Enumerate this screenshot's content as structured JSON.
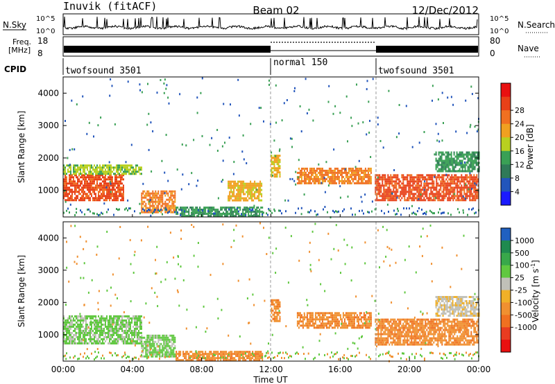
{
  "header": {
    "station": "Inuvik (fitACF)",
    "beam": "Beam 02",
    "date": "12/Dec/2012"
  },
  "strip_labels": {
    "nsky": "N.Sky",
    "freq_line1": "Freq.",
    "freq_line2": "[MHz]",
    "cpid": "CPID",
    "nsearch": "N.Search",
    "nave": "Nave",
    "nsky_ticks": [
      "10^5",
      "10^0"
    ],
    "freq_ticks": [
      "18",
      "8"
    ],
    "nave_ticks": [
      "80",
      "0"
    ],
    "nsearch_ticks": [
      "10^5",
      "10^0"
    ]
  },
  "cpid_segments": [
    {
      "label": "twofsound 3501",
      "start": "00:00",
      "end": "12:00"
    },
    {
      "label": "normal 150",
      "start": "12:00",
      "end": "18:00"
    },
    {
      "label": "twofsound 3501",
      "start": "18:00",
      "end": "24:00"
    }
  ],
  "x_axis": {
    "label": "Time UT",
    "ticks": [
      "00:00",
      "04:00",
      "08:00",
      "12:00",
      "16:00",
      "20:00",
      "00:00"
    ]
  },
  "chart_data": [
    {
      "type": "heatmap",
      "title": "",
      "xlabel": "Time UT",
      "ylabel": "Slant Range [km]",
      "x_range_hours": [
        0,
        24
      ],
      "ylim": [
        180,
        4500
      ],
      "yticks": [
        "1000",
        "2000",
        "3000",
        "4000"
      ],
      "colorbar": {
        "label": "Power [dB]",
        "ticks": [
          "4",
          "8",
          "12",
          "16",
          "20",
          "24",
          "28"
        ],
        "colors": [
          "#1a1aff",
          "#2255bb",
          "#2f7a58",
          "#3aa055",
          "#b8d020",
          "#f0a020",
          "#f07020",
          "#e84018",
          "#e81010"
        ]
      },
      "regions": [
        {
          "t0": 0.0,
          "t1": 3.5,
          "r0": 700,
          "r1": 1500,
          "level": 28
        },
        {
          "t0": 0.0,
          "t1": 4.5,
          "r0": 1500,
          "r1": 1800,
          "level": 16
        },
        {
          "t0": 4.5,
          "t1": 6.5,
          "r0": 300,
          "r1": 1000,
          "level": 24
        },
        {
          "t0": 6.5,
          "t1": 11.5,
          "r0": 200,
          "r1": 500,
          "level": 12
        },
        {
          "t0": 9.5,
          "t1": 11.5,
          "r0": 700,
          "r1": 1300,
          "level": 20
        },
        {
          "t0": 12.0,
          "t1": 12.5,
          "r0": 1400,
          "r1": 2100,
          "level": 20
        },
        {
          "t0": 13.5,
          "t1": 17.8,
          "r0": 1200,
          "r1": 1700,
          "level": 24
        },
        {
          "t0": 18.0,
          "t1": 24.0,
          "r0": 700,
          "r1": 1500,
          "level": 28
        },
        {
          "t0": 21.5,
          "t1": 24.0,
          "r0": 1600,
          "r1": 2200,
          "level": 12
        }
      ]
    },
    {
      "type": "heatmap",
      "title": "",
      "xlabel": "Time UT",
      "ylabel": "Slant Range [km]",
      "x_range_hours": [
        0,
        24
      ],
      "ylim": [
        180,
        4500
      ],
      "yticks": [
        "1000",
        "2000",
        "3000",
        "4000"
      ],
      "colorbar": {
        "label": "Velocity [m s^-1]",
        "ticks": [
          "1000",
          "500",
          "100",
          "25",
          "-25",
          "-100",
          "-500",
          "-1000"
        ],
        "colors": [
          "#2060c0",
          "#1f8a4f",
          "#38a84a",
          "#60c840",
          "#c0c0b8",
          "#f0b028",
          "#f09030",
          "#f07020",
          "#e83c20",
          "#e81010"
        ]
      },
      "regions": [
        {
          "t0": 0.0,
          "t1": 4.5,
          "r0": 700,
          "r1": 1600,
          "level": 100
        },
        {
          "t0": 4.5,
          "t1": 6.5,
          "r0": 300,
          "r1": 1000,
          "level": 100
        },
        {
          "t0": 6.5,
          "t1": 11.5,
          "r0": 200,
          "r1": 500,
          "level": -100
        },
        {
          "t0": 12.0,
          "t1": 12.5,
          "r0": 1400,
          "r1": 2100,
          "level": -100
        },
        {
          "t0": 13.5,
          "t1": 17.8,
          "r0": 1200,
          "r1": 1700,
          "level": -100
        },
        {
          "t0": 18.0,
          "t1": 24.0,
          "r0": 700,
          "r1": 1500,
          "level": -100
        },
        {
          "t0": 21.5,
          "t1": 24.0,
          "r0": 1600,
          "r1": 2200,
          "level": 25
        }
      ]
    }
  ]
}
